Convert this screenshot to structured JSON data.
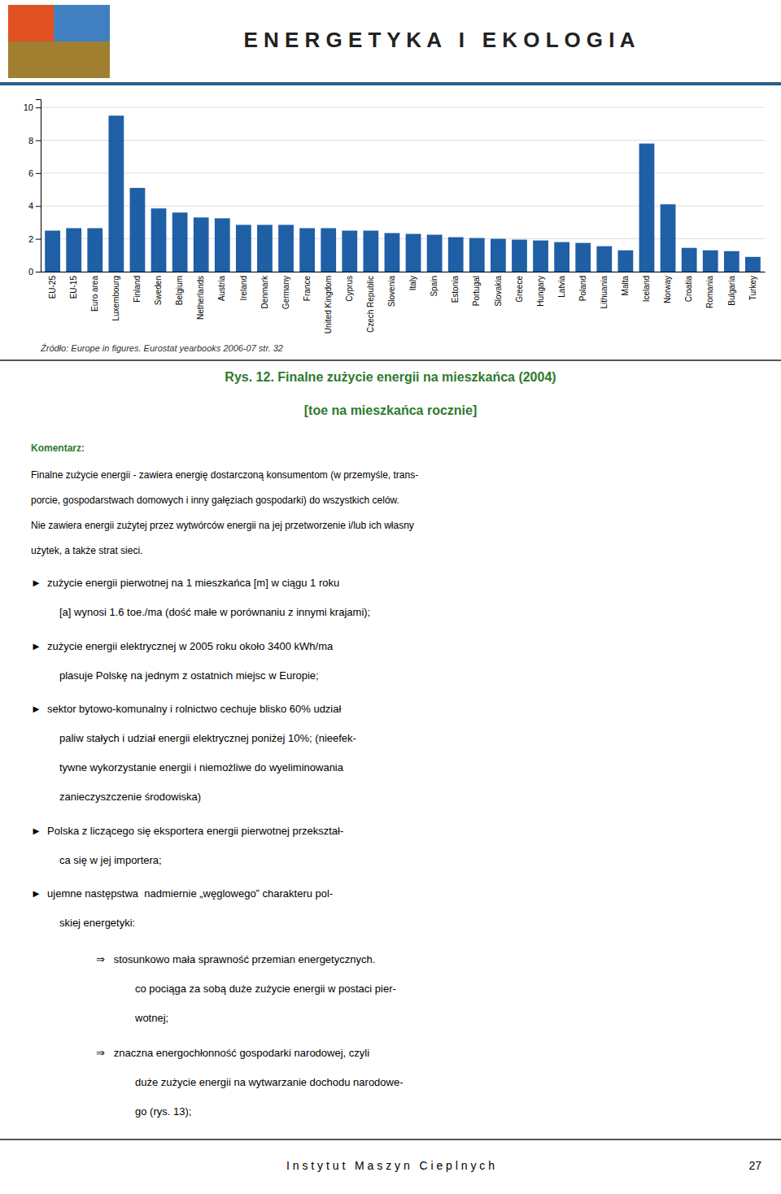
{
  "chart_data": {
    "type": "bar",
    "title": "Rys. 12. Finalne zużycie energii na mieszkańca (2004)",
    "subtitle": "[toe na mieszkańca rocznie]",
    "annotations": [
      "Źródło: Europe in figures. Eurostat yearbooks 2006-07 str. 32"
    ],
    "categories": [
      "EU-25",
      "EU-15",
      "Euro area",
      "Luxembourg",
      "Finland",
      "Sweden",
      "Belgium",
      "Netherlands",
      "Austria",
      "Ireland",
      "Denmark",
      "Germany",
      "France",
      "United Kingdom",
      "Cyprus",
      "Czech Republic",
      "Slovenia",
      "Italy",
      "Spain",
      "Estonia",
      "Portugal",
      "Slovakia",
      "Greece",
      "Hungary",
      "Latvia",
      "Poland",
      "Lithuania",
      "Malta",
      "Iceland",
      "Norway",
      "Croatia",
      "Romania",
      "Bulgaria",
      "Turkey"
    ],
    "values": [
      2.5,
      2.65,
      2.65,
      9.5,
      5.1,
      3.85,
      3.6,
      3.3,
      3.25,
      2.85,
      2.85,
      2.85,
      2.65,
      2.65,
      2.5,
      2.5,
      2.35,
      2.3,
      2.25,
      2.1,
      2.05,
      2.0,
      1.95,
      1.9,
      1.8,
      1.75,
      1.55,
      1.3,
      7.8,
      4.1,
      1.45,
      1.3,
      1.25,
      0.9
    ],
    "color": "#1f5fa6",
    "ylim": [
      0,
      10.5
    ],
    "yticks": [
      0,
      2,
      4,
      6,
      8,
      10
    ],
    "grid": true
  },
  "page": {
    "header_title": "E N E R G E T Y K A   I   E K O L O G I A",
    "logo_colors": [
      "#e05020",
      "#4080c0",
      "#a08030",
      "#c8a040"
    ],
    "background_color": "#ffffff",
    "caption_color": "#2d7a2d",
    "comment_label": "Komentarz:",
    "comment_lines": [
      "Finalne zużycie energii - zawiera energię dostarczoną konsumentom (w przemyśle, trans-",
      "porcie, gospodarstwach domowych i inny gałęziach gospodarki) do wszystkich celów.",
      "Nie zawiera energii zużytej przez wytwórców energii na jej przetworzenie i/lub ich własny",
      "użytek, a także strat sieci."
    ],
    "bullets": [
      {
        "lines": [
          "►  zużycie energii pierwotnej na 1 mieszkańca [m] w ciągu 1 roku",
          "[a] wynosi 1.6 toe./ma (dość małe w porównaniu z innymi krajami);"
        ]
      },
      {
        "lines": [
          "►  zużycie energii elektrycznej w 2005 roku około 3400 kWh/ma",
          "plasuje Polskę na jednym z ostatnich miejsc w Europie;"
        ]
      },
      {
        "lines": [
          "►  sektor bytowo-komunalny i rolnictwo cechuje blisko 60% udział",
          "paliw stałych i udział energii elektrycznej poniżej 10%; (nieefek-",
          "tywne wykorzystanie energii i niemożliwe do wyeliminowania",
          "zanieczyszczenie środowiska)"
        ]
      },
      {
        "lines": [
          "►  Polska z liczącego się eksportera energii pierwotnej przekształ-",
          "ca się w jej importera;"
        ]
      },
      {
        "lines": [
          "►  ujemne następstwa  nadmiernie „węglowego” charakteru pol-",
          "skiej energetyki:"
        ]
      }
    ],
    "sub_bullets": [
      {
        "lines": [
          "⇒   stosunkowo mała sprawność przemian energetycznych.",
          "co pociąga za sobą duże zużycie energii w postaci pier-",
          "wotnej;"
        ]
      },
      {
        "lines": [
          "⇒   znaczna energochłonność gospodarki narodowej, czyli",
          "duże zużycie energii na wytwarzanie dochodu narodowe-",
          "go (rys. 13);"
        ]
      }
    ],
    "footer": "I n s t y t u t   M a s z y n   C i e p l n y c h",
    "page_number": "27"
  }
}
